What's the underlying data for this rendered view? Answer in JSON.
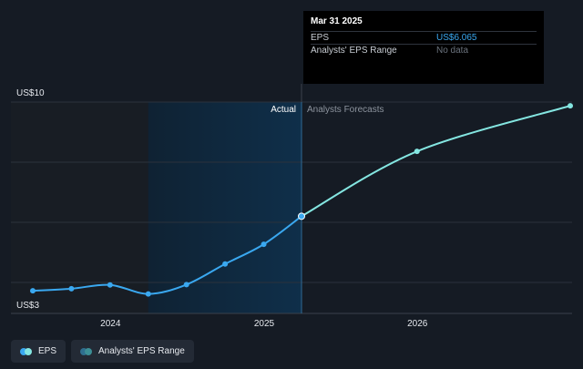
{
  "chart_data": {
    "type": "line",
    "title": "",
    "xlabel": "",
    "ylabel": "",
    "ylim": [
      3,
      10
    ],
    "y_tick_labels": [
      "US$10",
      "US$3"
    ],
    "x_tick_labels": [
      {
        "date": "2024-01-01",
        "label": "2024"
      },
      {
        "date": "2025-01-01",
        "label": "2025"
      },
      {
        "date": "2026-01-01",
        "label": "2026"
      }
    ],
    "x_range": [
      "2023-06-30",
      "2026-12-31"
    ],
    "regions": {
      "past_start": "2024-03-31",
      "divider": "2025-03-31",
      "actual_label": "Actual",
      "forecast_label": "Analysts Forecasts"
    },
    "grid": true,
    "series": [
      {
        "name": "EPS",
        "color": "#3aa8f0",
        "x": [
          "2023-06-30",
          "2023-09-30",
          "2023-12-31",
          "2024-03-31",
          "2024-06-30",
          "2024-09-30",
          "2024-12-31",
          "2025-03-31"
        ],
        "values": [
          3.5,
          3.57,
          3.7,
          3.39,
          3.71,
          4.42,
          5.1,
          6.065
        ]
      },
      {
        "name": "EPS Forecast",
        "color": "#84e6e1",
        "x": [
          "2025-03-31",
          "2025-12-31",
          "2026-12-31"
        ],
        "values": [
          6.065,
          8.3,
          9.87
        ]
      }
    ]
  },
  "tooltip": {
    "date": "Mar 31 2025",
    "rows": [
      {
        "label": "EPS",
        "value": "US$6.065"
      },
      {
        "label": "Analysts' EPS Range",
        "value": "No data"
      }
    ]
  },
  "legend": {
    "items": [
      {
        "label": "EPS",
        "colors": [
          "#3aa8f0",
          "#84e6e1"
        ]
      },
      {
        "label": "Analysts' EPS Range",
        "colors": [
          "#2f6f8f",
          "#3c8f96"
        ]
      }
    ]
  }
}
